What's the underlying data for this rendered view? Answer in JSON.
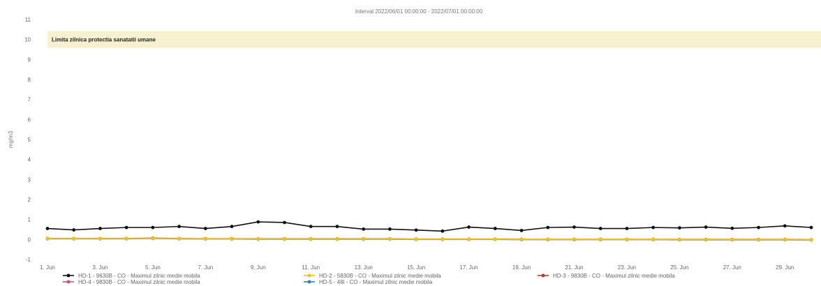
{
  "chart_data": {
    "type": "line",
    "title": "Interval 2022/06/01 00:00:00 - 2022/07/01 00:00:00",
    "ylabel": "mg/m3",
    "xlabel": "",
    "ylim": [
      -1,
      11
    ],
    "yticks": [
      -1,
      0,
      1,
      2,
      3,
      4,
      5,
      6,
      7,
      8,
      9,
      10,
      11
    ],
    "x_tick_labels": [
      "1. Jun",
      "3. Jun",
      "5. Jun",
      "7. Jun",
      "9. Jun",
      "11. Jun",
      "13. Jun",
      "15. Jun",
      "17. Jun",
      "19. Jun",
      "21. Jun",
      "23. Jun",
      "25. Jun",
      "27. Jun",
      "29. Jun"
    ],
    "limit": {
      "value": 10,
      "label": "Limita zilnica protectia sanatatii umane",
      "color": "#f3e6a8"
    },
    "x": [
      "2022-06-01",
      "2022-06-02",
      "2022-06-03",
      "2022-06-04",
      "2022-06-05",
      "2022-06-06",
      "2022-06-07",
      "2022-06-08",
      "2022-06-09",
      "2022-06-10",
      "2022-06-11",
      "2022-06-12",
      "2022-06-13",
      "2022-06-14",
      "2022-06-15",
      "2022-06-16",
      "2022-06-17",
      "2022-06-18",
      "2022-06-19",
      "2022-06-20",
      "2022-06-21",
      "2022-06-22",
      "2022-06-23",
      "2022-06-24",
      "2022-06-25",
      "2022-06-26",
      "2022-06-27",
      "2022-06-28",
      "2022-06-29",
      "2022-06-30"
    ],
    "series": [
      {
        "name": "HD-1 - 9630B - CO - Maximul zilnic medie mobila",
        "color": "#111111",
        "values": [
          0.55,
          0.48,
          0.55,
          0.6,
          0.6,
          0.65,
          0.55,
          0.65,
          0.88,
          0.85,
          0.65,
          0.65,
          0.52,
          0.52,
          0.47,
          0.42,
          0.62,
          0.55,
          0.45,
          0.6,
          0.62,
          0.55,
          0.55,
          0.6,
          0.58,
          0.62,
          0.56,
          0.6,
          0.68,
          0.6
        ]
      },
      {
        "name": "HD-2 - 5830B - CO - Maximul zilnic medie mobila",
        "color": "#f1c40f",
        "values": [
          0.04,
          0.04,
          0.04,
          0.04,
          0.06,
          0.04,
          0.03,
          0.03,
          0.02,
          0.02,
          0.02,
          0.02,
          0.02,
          0.02,
          0.01,
          0.01,
          0.01,
          0.01,
          0.0,
          0.0,
          0.0,
          0.0,
          0.0,
          0.0,
          -0.01,
          -0.01,
          -0.01,
          -0.01,
          -0.01,
          -0.02
        ]
      },
      {
        "name": "HD-3 - 9830B - CO - Maximul zilnic medie mobila",
        "color": "#c0392b",
        "values": [
          0.05,
          0.05,
          0.05,
          0.05,
          0.07,
          0.05,
          0.04,
          0.04,
          0.03,
          0.03,
          0.03,
          0.03,
          0.03,
          0.03,
          0.02,
          0.02,
          0.02,
          0.02,
          0.01,
          0.01,
          0.01,
          0.01,
          0.01,
          0.01,
          0.0,
          0.0,
          0.0,
          0.0,
          0.0,
          -0.01
        ]
      },
      {
        "name": "HD-4 - 9830B - CO - Maximul zilnic medie mobila",
        "color": "#d2527f",
        "values": [
          0.04,
          0.04,
          0.04,
          0.04,
          0.06,
          0.04,
          0.03,
          0.03,
          0.02,
          0.02,
          0.02,
          0.02,
          0.02,
          0.02,
          0.01,
          0.01,
          0.01,
          0.01,
          0.0,
          0.0,
          0.0,
          0.0,
          0.0,
          0.0,
          -0.01,
          -0.01,
          -0.01,
          -0.01,
          -0.01,
          -0.02
        ]
      },
      {
        "name": "HD-5 - 48i - CO - Maximul zilnic medie mobila",
        "color": "#2e86c1",
        "values": [
          0.03,
          0.03,
          0.03,
          0.03,
          0.05,
          0.03,
          0.02,
          0.02,
          0.01,
          0.01,
          0.01,
          0.01,
          0.01,
          0.01,
          0.0,
          0.0,
          0.0,
          0.0,
          -0.01,
          -0.01,
          -0.01,
          -0.01,
          -0.01,
          -0.01,
          -0.02,
          -0.02,
          -0.02,
          -0.02,
          -0.02,
          -0.03
        ]
      }
    ],
    "legend": "bottom-left",
    "grid": false
  }
}
